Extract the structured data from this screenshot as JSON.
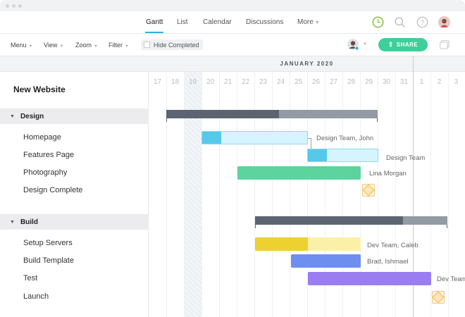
{
  "nav": {
    "tabs": [
      {
        "label": "Gantt"
      },
      {
        "label": "List"
      },
      {
        "label": "Calendar"
      },
      {
        "label": "Discussions"
      },
      {
        "label": "More"
      }
    ],
    "icons": [
      "clock-icon",
      "search-icon",
      "help-icon",
      "user-avatar"
    ]
  },
  "toolbar": {
    "menu": "Menu",
    "view": "View",
    "zoom": "Zoom",
    "filter": "Filter",
    "hide_completed": "Hide Completed",
    "share": "SHARE"
  },
  "colors": {
    "accent": "#2fb3e0",
    "share": "#3ecf9a",
    "clock": "#8bc34a"
  },
  "project": {
    "title": "New Website",
    "sections": [
      {
        "name": "Design",
        "tasks": [
          {
            "name": "Homepage",
            "assignee": "Design Team, John"
          },
          {
            "name": "Features Page",
            "assignee": "Design Team"
          },
          {
            "name": "Photography",
            "assignee": "Lina Morgan"
          },
          {
            "name": "Design Complete",
            "assignee": ""
          }
        ]
      },
      {
        "name": "Build",
        "tasks": [
          {
            "name": "Setup Servers",
            "assignee": "Dev Team, Caleb"
          },
          {
            "name": "Build Template",
            "assignee": "Brad, Ishmael"
          },
          {
            "name": "Test",
            "assignee": "Dev Team"
          },
          {
            "name": "Launch",
            "assignee": ""
          }
        ]
      }
    ]
  },
  "timeline": {
    "month": "JANUARY 2020",
    "days": [
      "17",
      "18",
      "19",
      "20",
      "21",
      "22",
      "23",
      "24",
      "25",
      "26",
      "27",
      "28",
      "29",
      "30",
      "31",
      "1",
      "2",
      "3"
    ]
  }
}
